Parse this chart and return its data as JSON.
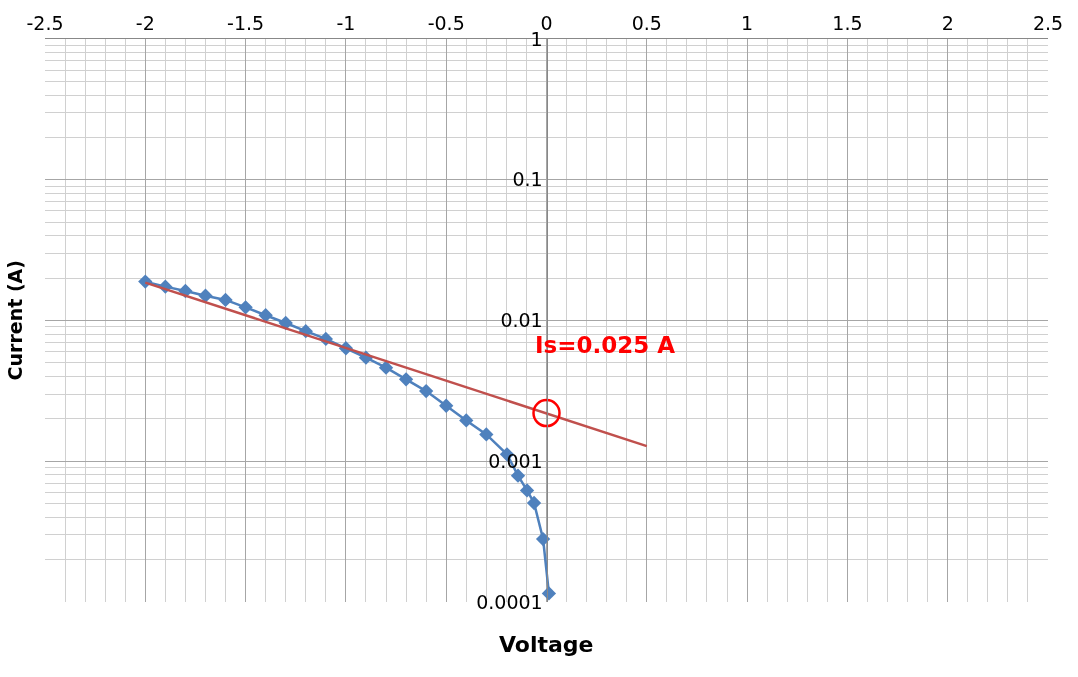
{
  "chart_data": {
    "type": "line",
    "xlabel": "Voltage",
    "ylabel": "Current (A)",
    "xlim": [
      -2.5,
      2.5
    ],
    "xticks": [
      -2.5,
      -2,
      -1.5,
      -1,
      -0.5,
      0,
      0.5,
      1,
      1.5,
      2,
      2.5
    ],
    "ylim": [
      0.0001,
      1
    ],
    "yticks": [
      0.0001,
      0.001,
      0.01,
      0.1,
      1
    ],
    "log": "y",
    "grid": true,
    "series": [
      {
        "color": "#4f81bd",
        "marker": "diamond",
        "x": [
          -2.0,
          -1.9,
          -1.8,
          -1.7,
          -1.6,
          -1.5,
          -1.4,
          -1.3,
          -1.2,
          -1.1,
          -1.0,
          -0.9,
          -0.8,
          -0.7,
          -0.6,
          -0.5,
          -0.4,
          -0.3,
          -0.197,
          -0.142,
          -0.097,
          -0.062,
          -0.017,
          0.012
        ],
        "values": [
          0.0189,
          0.0174,
          0.0162,
          0.015,
          0.014,
          0.0124,
          0.0109,
          0.0096,
          0.0084,
          0.0074,
          0.00635,
          0.00544,
          0.00462,
          0.00382,
          0.00315,
          0.00248,
          0.00195,
          0.00155,
          0.00112,
          0.00079,
          0.00062,
          0.000505,
          0.00028,
          0.000115
        ]
      },
      {
        "color": "#c0504d",
        "marker": "none",
        "x": [
          -2.0,
          0.5
        ],
        "values": [
          0.0186,
          0.00128
        ]
      }
    ],
    "annotations": [
      {
        "text": "Is=0.025 A",
        "x": 0,
        "y": 0.0022
      }
    ]
  }
}
